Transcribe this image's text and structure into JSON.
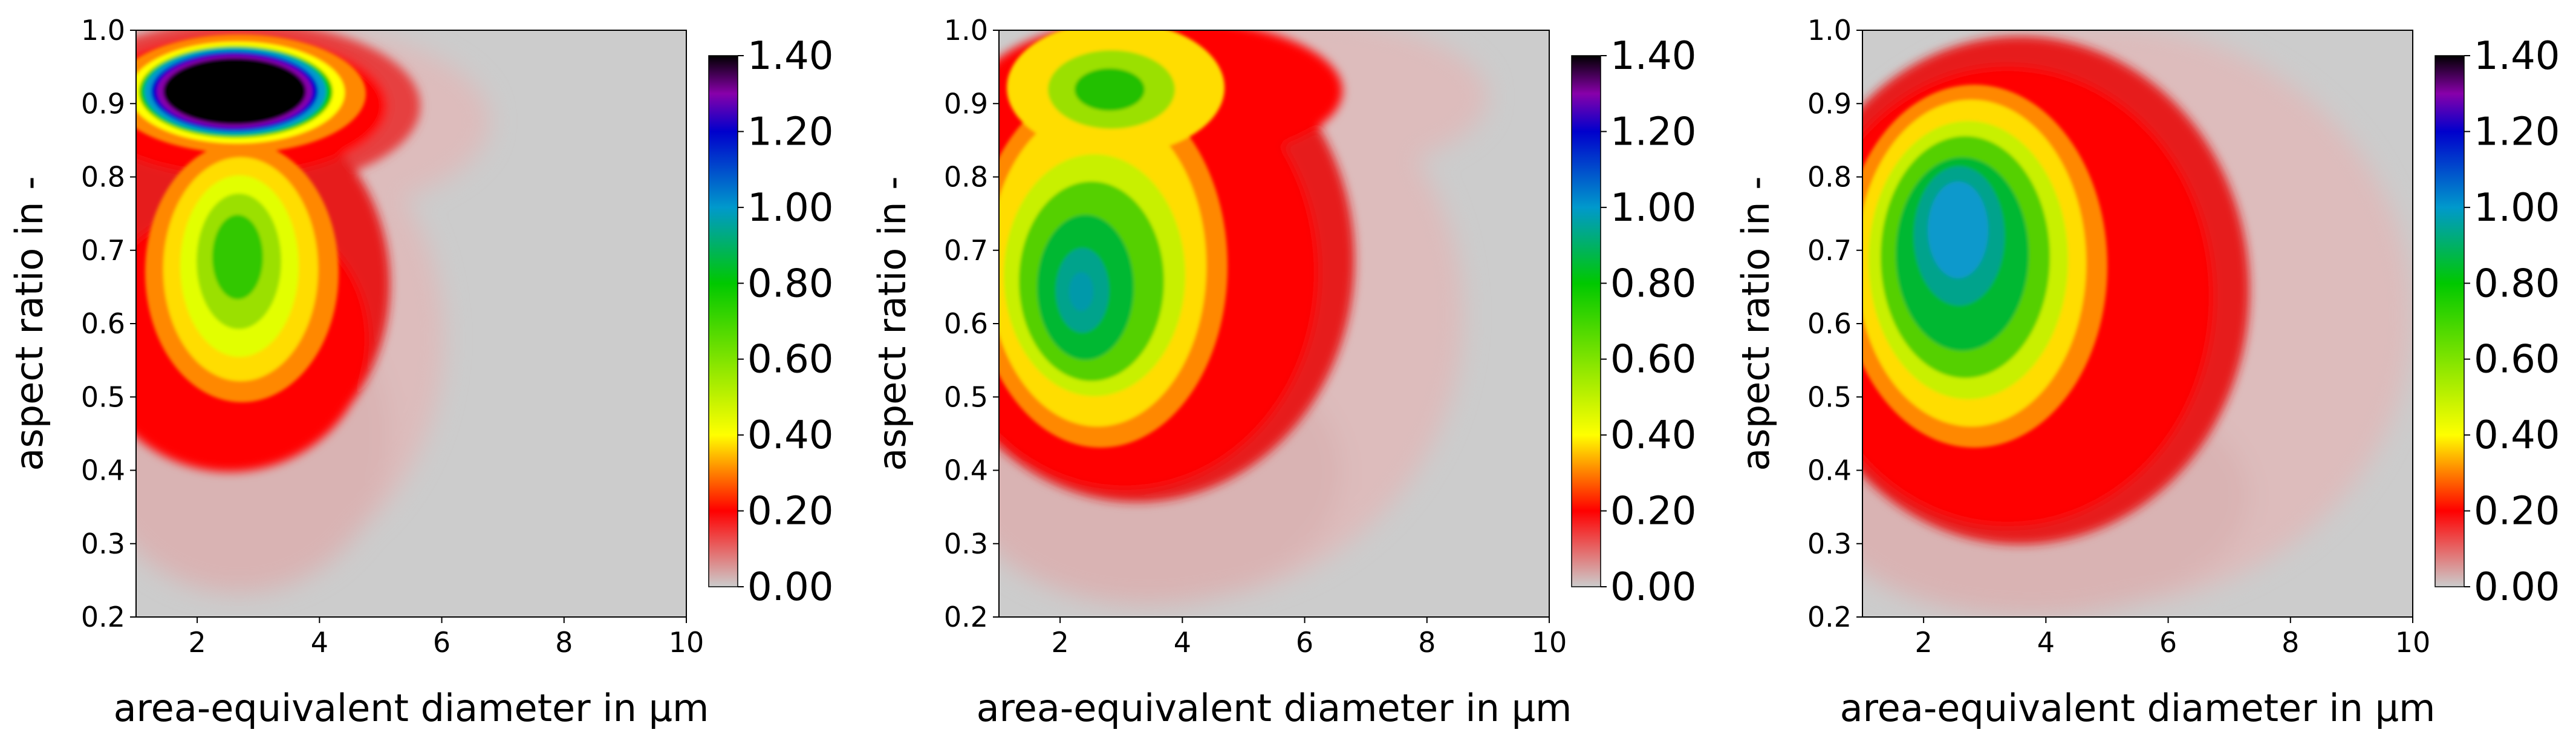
{
  "figure": {
    "colorbar_stops": [
      "#cccccc",
      "#ff0000",
      "#ffff00",
      "#00c800",
      "#0099cc",
      "#0000cc",
      "#8800aa",
      "#000000"
    ],
    "colorbar_stop_values": [
      0.0,
      0.2,
      0.4,
      0.8,
      1.0,
      1.2,
      1.3,
      1.4
    ],
    "panels": [
      {
        "xlabel": "area-equivalent diameter in µm",
        "ylabel": "aspect ratio in -",
        "xticks": [
          "2",
          "4",
          "6",
          "8",
          "10"
        ],
        "yticks": [
          "0.2",
          "0.3",
          "0.4",
          "0.5",
          "0.6",
          "0.7",
          "0.8",
          "0.9",
          "1.0"
        ],
        "colorbar_ticks": [
          "0.00",
          "0.20",
          "0.40",
          "0.60",
          "0.80",
          "1.00",
          "1.20",
          "1.40"
        ]
      },
      {
        "xlabel": "area-equivalent diameter in µm",
        "ylabel": "aspect ratio in -",
        "xticks": [
          "2",
          "4",
          "6",
          "8",
          "10"
        ],
        "yticks": [
          "0.2",
          "0.3",
          "0.4",
          "0.5",
          "0.6",
          "0.7",
          "0.8",
          "0.9",
          "1.0"
        ],
        "colorbar_ticks": [
          "0.00",
          "0.20",
          "0.40",
          "0.60",
          "0.80",
          "1.00",
          "1.20",
          "1.40"
        ]
      },
      {
        "xlabel": "area-equivalent diameter in µm",
        "ylabel": "aspect ratio in -",
        "xticks": [
          "2",
          "4",
          "6",
          "8",
          "10"
        ],
        "yticks": [
          "0.2",
          "0.3",
          "0.4",
          "0.5",
          "0.6",
          "0.7",
          "0.8",
          "0.9",
          "1.0"
        ],
        "colorbar_ticks": [
          "0.00",
          "0.20",
          "0.40",
          "0.60",
          "0.80",
          "1.00",
          "1.20",
          "1.40"
        ]
      }
    ]
  },
  "chart_data": [
    {
      "type": "heatmap",
      "title": "",
      "xlabel": "area-equivalent diameter in µm",
      "ylabel": "aspect ratio in -",
      "xlim": [
        1,
        10
      ],
      "ylim": [
        0.2,
        1.0
      ],
      "colorbar_range": [
        0.0,
        1.4
      ],
      "colorbar_ticks": [
        0.0,
        0.2,
        0.4,
        0.6,
        0.8,
        1.0,
        1.2,
        1.4
      ],
      "peaks": [
        {
          "x": 2.7,
          "y": 0.91,
          "value": 1.5
        },
        {
          "x": 2.6,
          "y": 0.68,
          "value": 0.7
        }
      ]
    },
    {
      "type": "heatmap",
      "title": "",
      "xlabel": "area-equivalent diameter in µm",
      "ylabel": "aspect ratio in -",
      "xlim": [
        1,
        10
      ],
      "ylim": [
        0.2,
        1.0
      ],
      "colorbar_range": [
        0.0,
        1.4
      ],
      "colorbar_ticks": [
        0.0,
        0.2,
        0.4,
        0.6,
        0.8,
        1.0,
        1.2,
        1.4
      ],
      "peaks": [
        {
          "x": 2.4,
          "y": 0.65,
          "value": 0.92
        },
        {
          "x": 2.6,
          "y": 0.9,
          "value": 0.72
        }
      ]
    },
    {
      "type": "heatmap",
      "title": "",
      "xlabel": "area-equivalent diameter in µm",
      "ylabel": "aspect ratio in -",
      "xlim": [
        1,
        10
      ],
      "ylim": [
        0.2,
        1.0
      ],
      "colorbar_range": [
        0.0,
        1.4
      ],
      "colorbar_ticks": [
        0.0,
        0.2,
        0.4,
        0.6,
        0.8,
        1.0,
        1.2,
        1.4
      ],
      "peaks": [
        {
          "x": 2.5,
          "y": 0.72,
          "value": 0.98
        }
      ]
    }
  ]
}
